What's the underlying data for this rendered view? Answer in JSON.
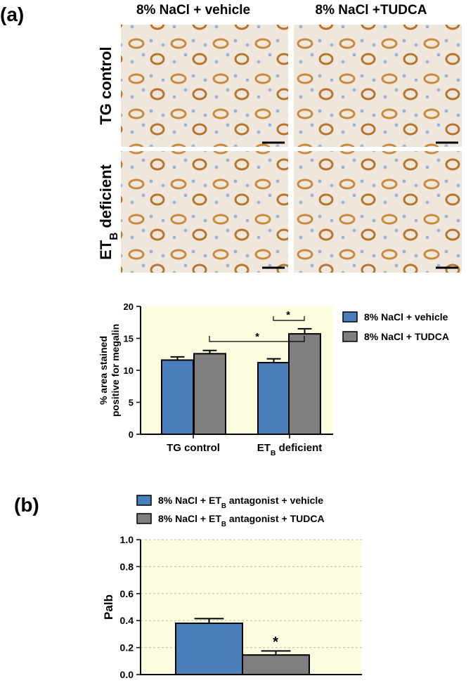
{
  "panel_a": {
    "label": "(a)",
    "column_headers": [
      "8% NaCl + vehicle",
      "8% NaCl +TUDCA"
    ],
    "row_labels": [
      [
        "TG control"
      ],
      [
        "ET",
        "B",
        " deficient"
      ]
    ]
  },
  "panel_b": {
    "label": "(b)"
  },
  "chart_data": [
    {
      "type": "bar",
      "ylabel": [
        "% area stained",
        "positive for megalin"
      ],
      "categories": [
        [
          "TG control"
        ],
        [
          "ET",
          "B",
          " deficient"
        ]
      ],
      "series": [
        {
          "name": [
            [
              "8% NaCl + vehicle"
            ]
          ],
          "color": "#4a7ebb",
          "values": [
            11.6,
            11.2
          ],
          "errors": [
            0.5,
            0.6
          ]
        },
        {
          "name": [
            [
              "8% NaCl + TUDCA"
            ]
          ],
          "color": "#7f7f7f",
          "values": [
            12.6,
            15.7
          ],
          "errors": [
            0.5,
            0.8
          ]
        }
      ],
      "ylim": [
        0,
        20
      ],
      "yticks": [
        0,
        5,
        10,
        15,
        20
      ],
      "grid": false,
      "background": "#fdfde0",
      "annotations": [
        "*",
        "*"
      ]
    },
    {
      "type": "bar",
      "ylabel": [
        [
          "P",
          "alb"
        ]
      ],
      "series": [
        {
          "name": [
            [
              "8% NaCl + ET",
              "B",
              " antagonist + vehicle"
            ]
          ],
          "color": "#4a7ebb",
          "values": [
            0.38
          ],
          "errors": [
            0.035
          ]
        },
        {
          "name": [
            [
              "8% NaCl + ET",
              "B",
              " antagonist + TUDCA"
            ]
          ],
          "color": "#7f7f7f",
          "values": [
            0.145
          ],
          "errors": [
            0.03
          ]
        }
      ],
      "ylim": [
        0,
        1
      ],
      "yticks": [
        {
          "value": 0,
          "label": "0.0"
        },
        {
          "value": 0.2,
          "label": "0.2"
        },
        {
          "value": 0.4,
          "label": "0.4"
        },
        {
          "value": 0.6,
          "label": "0.6"
        },
        {
          "value": 0.8,
          "label": "0.8"
        },
        {
          "value": 1,
          "label": "1.0"
        }
      ],
      "grid": true,
      "background": "#fdfde0",
      "annotations": [
        "*"
      ]
    }
  ]
}
